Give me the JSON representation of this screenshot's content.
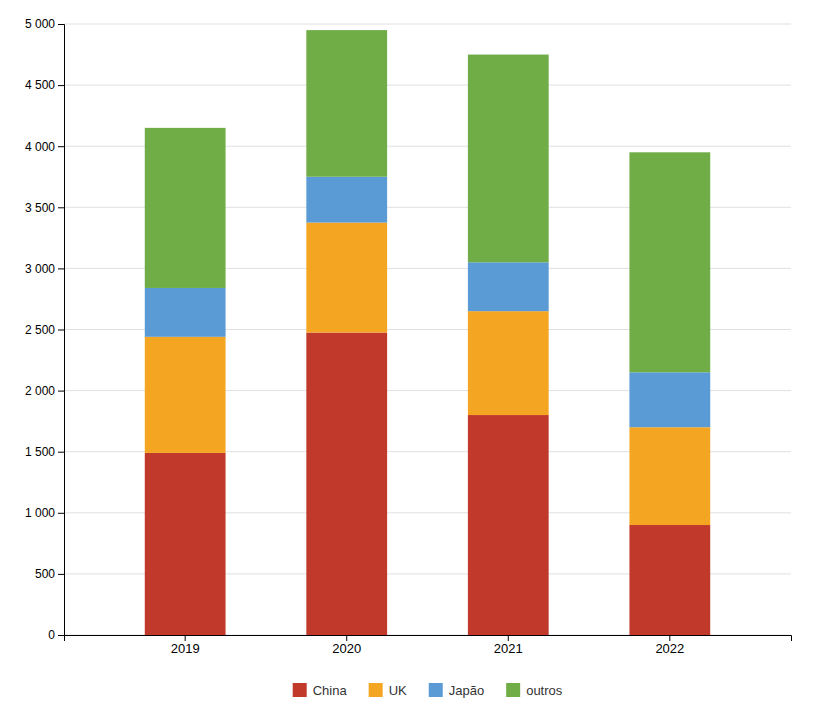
{
  "chart_data": {
    "type": "bar",
    "stacked": true,
    "categories": [
      "2019",
      "2020",
      "2021",
      "2022"
    ],
    "series": [
      {
        "name": "China",
        "color": "#C0392B",
        "values": [
          1490,
          2475,
          1800,
          900
        ]
      },
      {
        "name": "UK",
        "color": "#F4A623",
        "values": [
          950,
          900,
          850,
          800
        ]
      },
      {
        "name": "Japão",
        "color": "#5B9BD5",
        "values": [
          400,
          375,
          400,
          450
        ]
      },
      {
        "name": "outros",
        "color": "#70AD47",
        "values": [
          1310,
          1200,
          1700,
          1800
        ]
      }
    ],
    "ylim": [
      0,
      5000
    ],
    "yticks": [
      0,
      500,
      {
        "value": 1000,
        "label": "1 000"
      },
      {
        "value": 1500,
        "label": "1 500"
      },
      {
        "value": 2000,
        "label": "2 000"
      },
      {
        "value": 2500,
        "label": "2 500"
      },
      {
        "value": 3000,
        "label": "3 000"
      },
      {
        "value": 3500,
        "label": "3 500"
      },
      {
        "value": 4000,
        "label": "4 000"
      },
      {
        "value": 4500,
        "label": "4 500"
      },
      {
        "value": 5000,
        "label": "5 000"
      }
    ],
    "grid": true,
    "legend": "bottom"
  }
}
